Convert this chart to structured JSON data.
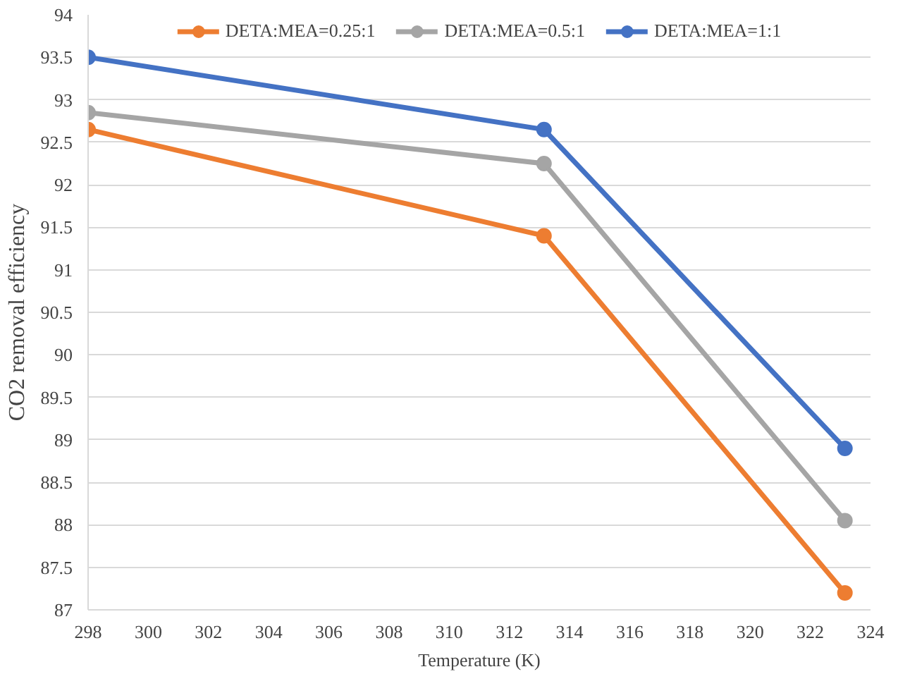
{
  "chart_data": {
    "type": "line",
    "xlabel": "Temperature (K)",
    "ylabel": "CO2 removal efficiency",
    "x": [
      298,
      313.15,
      323.15
    ],
    "series": [
      {
        "name": "DETA:MEA=0.25:1",
        "color": "#ed7d31",
        "values": [
          92.65,
          91.4,
          87.2
        ]
      },
      {
        "name": "DETA:MEA=0.5:1",
        "color": "#a5a5a5",
        "values": [
          92.85,
          92.25,
          88.05
        ]
      },
      {
        "name": "DETA:MEA=1:1",
        "color": "#4472c4",
        "values": [
          93.5,
          92.65,
          88.9
        ]
      }
    ],
    "xlim": [
      298,
      324
    ],
    "xticks": [
      298,
      300,
      302,
      304,
      306,
      308,
      310,
      312,
      314,
      316,
      318,
      320,
      322,
      324
    ],
    "ylim": [
      87,
      94
    ],
    "yticks": [
      87,
      87.5,
      88,
      88.5,
      89,
      89.5,
      90,
      90.5,
      91,
      91.5,
      92,
      92.5,
      93,
      93.5,
      94
    ],
    "grid": "y",
    "legend": "top",
    "marker": "circle",
    "line_style": "solid"
  }
}
